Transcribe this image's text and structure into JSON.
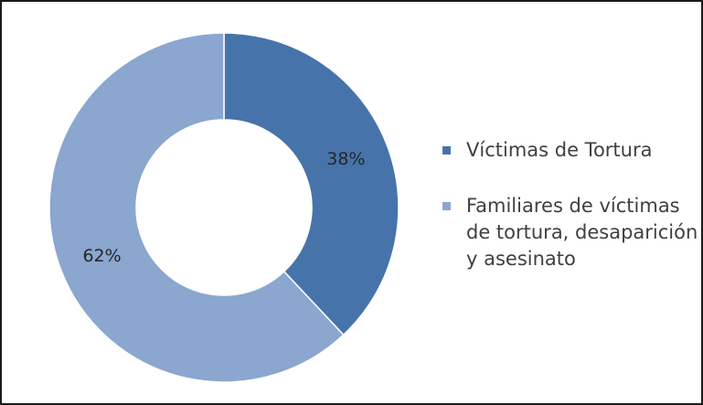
{
  "chart_data": {
    "type": "pie",
    "variant": "donut",
    "title": "",
    "categories": [
      "Víctimas de Tortura",
      "Familiares de víctimas de tortura, desaparición y asesinato"
    ],
    "values": [
      38,
      62
    ],
    "labels": [
      "38%",
      "62%"
    ],
    "colors": [
      "#4674AA",
      "#8BA6CF"
    ],
    "legend_position": "right"
  },
  "legend": {
    "items": [
      {
        "label": "Víctimas de Tortura",
        "color": "#4674AA"
      },
      {
        "label": "Familiares de víctimas de tortura, desaparición y asesinato",
        "color": "#8BA6CF"
      }
    ]
  }
}
